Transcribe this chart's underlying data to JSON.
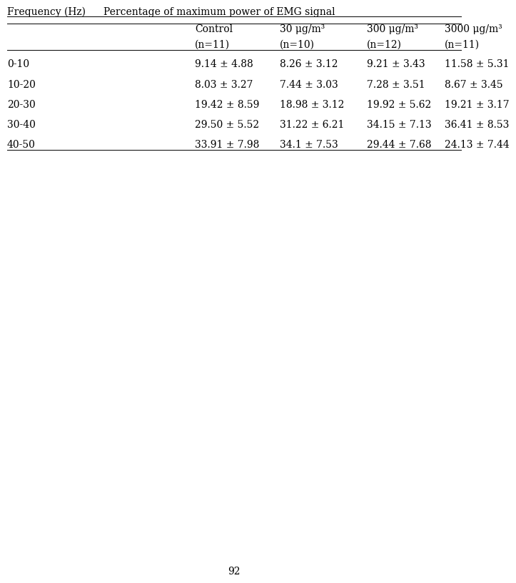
{
  "title_left": "Frequency (Hz)",
  "title_right": "Percentage of maximum power of EMG signal",
  "col_headers_line1": [
    "Control",
    "30 μg/m³",
    "300 μg/m³",
    "3000 μg/m³"
  ],
  "col_headers_line2": [
    "(n=11)",
    "(n=10)",
    "(n=12)",
    "(n=11)"
  ],
  "row_headers": [
    "0-10",
    "10-20",
    "20-30",
    "30-40",
    "40-50"
  ],
  "data": [
    [
      "9.14 ± 4.88",
      "8.26 ± 3.12",
      "9.21 ± 3.43",
      "11.58 ± 5.31"
    ],
    [
      "8.03 ± 3.27",
      "7.44 ± 3.03",
      "7.28 ± 3.51",
      "8.67 ± 3.45"
    ],
    [
      "19.42 ± 8.59",
      "18.98 ± 3.12",
      "19.92 ± 5.62",
      "19.21 ± 3.17"
    ],
    [
      "29.50 ± 5.52",
      "31.22 ± 6.21",
      "34.15 ± 7.13",
      "36.41 ± 8.53"
    ],
    [
      "33.91 ± 7.98",
      "34.1 ± 7.53",
      "29.44 ± 7.68",
      "24.13 ± 7.44"
    ]
  ],
  "page_number": "92",
  "bg_color": "#ffffff",
  "font_size": 10,
  "title_font_size": 10
}
